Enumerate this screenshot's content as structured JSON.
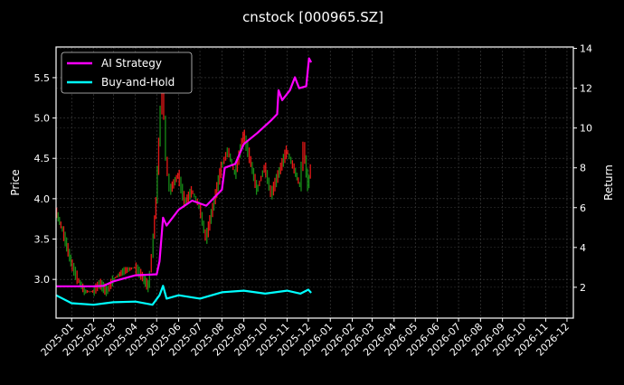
{
  "chart_data": {
    "type": "line",
    "title": "cnstock [000965.SZ]",
    "ylabel_left": "Price",
    "ylabel_right": "Return",
    "xlabel": "",
    "grid": true,
    "legend_placement": "top-left",
    "xlim": [
      "2024-12-10",
      "2026-12-10"
    ],
    "ylim_left": [
      2.52,
      5.88
    ],
    "ylim_right": [
      0.45,
      14.07
    ],
    "x_ticks": [
      "2025-01",
      "2025-02",
      "2025-03",
      "2025-04",
      "2025-05",
      "2025-06",
      "2025-07",
      "2025-08",
      "2025-09",
      "2025-10",
      "2025-11",
      "2025-12",
      "2026-01",
      "2026-02",
      "2026-03",
      "2026-04",
      "2026-05",
      "2026-06",
      "2026-07",
      "2026-08",
      "2026-09",
      "2026-10",
      "2026-11",
      "2026-12"
    ],
    "y_ticks_left": [
      "3.0",
      "3.5",
      "4.0",
      "4.5",
      "5.0",
      "5.5"
    ],
    "y_ticks_right": [
      "2",
      "4",
      "6",
      "8",
      "10",
      "12",
      "14"
    ],
    "colors": {
      "up": "#ff1a1a",
      "down": "#1a9a1a",
      "ai": "#ff00ff",
      "bh": "#00ffff",
      "background": "#000000"
    },
    "price": {
      "dates": [
        "2024-12-10",
        "2024-12-20",
        "2025-01-01",
        "2025-01-10",
        "2025-01-20",
        "2025-02-01",
        "2025-02-10",
        "2025-02-20",
        "2025-03-01",
        "2025-03-15",
        "2025-04-01",
        "2025-04-10",
        "2025-04-20",
        "2025-04-25",
        "2025-05-01",
        "2025-05-05",
        "2025-05-10",
        "2025-05-15",
        "2025-05-20",
        "2025-06-01",
        "2025-06-10",
        "2025-06-20",
        "2025-07-01",
        "2025-07-10",
        "2025-07-20",
        "2025-08-01",
        "2025-08-10",
        "2025-08-20",
        "2025-09-01",
        "2025-09-10",
        "2025-09-20",
        "2025-10-01",
        "2025-10-10",
        "2025-10-20",
        "2025-11-01",
        "2025-11-10",
        "2025-11-20",
        "2025-11-25",
        "2025-12-01",
        "2025-12-05"
      ],
      "close": [
        3.85,
        3.6,
        3.2,
        3.0,
        2.85,
        2.85,
        2.95,
        2.85,
        3.0,
        3.1,
        3.15,
        3.05,
        2.9,
        3.3,
        4.0,
        4.7,
        5.5,
        4.5,
        4.1,
        4.3,
        3.95,
        4.1,
        3.9,
        3.5,
        3.9,
        4.4,
        4.6,
        4.3,
        4.8,
        4.5,
        4.1,
        4.4,
        4.05,
        4.3,
        4.6,
        4.4,
        4.15,
        4.65,
        4.15,
        4.4
      ]
    },
    "series": [
      {
        "name": "AI Strategy",
        "axis": "right",
        "dates": [
          "2024-12-10",
          "2025-02-01",
          "2025-02-15",
          "2025-03-01",
          "2025-04-01",
          "2025-05-01",
          "2025-05-05",
          "2025-05-10",
          "2025-05-15",
          "2025-06-01",
          "2025-06-20",
          "2025-07-10",
          "2025-08-01",
          "2025-08-05",
          "2025-08-20",
          "2025-09-01",
          "2025-09-20",
          "2025-10-10",
          "2025-10-18",
          "2025-10-20",
          "2025-10-25",
          "2025-11-05",
          "2025-11-12",
          "2025-11-18",
          "2025-11-28",
          "2025-12-02",
          "2025-12-05"
        ],
        "values": [
          2.05,
          2.05,
          2.07,
          2.3,
          2.6,
          2.65,
          3.3,
          5.5,
          5.1,
          5.9,
          6.35,
          6.1,
          6.9,
          8.0,
          8.2,
          9.2,
          9.75,
          10.4,
          10.7,
          11.9,
          11.4,
          11.9,
          12.55,
          12.0,
          12.1,
          13.5,
          13.3
        ]
      },
      {
        "name": "Buy-and-Hold",
        "axis": "right",
        "dates": [
          "2024-12-10",
          "2025-01-01",
          "2025-02-01",
          "2025-03-01",
          "2025-04-01",
          "2025-04-25",
          "2025-05-05",
          "2025-05-10",
          "2025-05-15",
          "2025-06-01",
          "2025-07-01",
          "2025-08-01",
          "2025-09-01",
          "2025-10-01",
          "2025-11-01",
          "2025-11-20",
          "2025-12-01",
          "2025-12-05"
        ],
        "values": [
          1.6,
          1.2,
          1.12,
          1.25,
          1.28,
          1.12,
          1.6,
          2.07,
          1.43,
          1.6,
          1.43,
          1.75,
          1.83,
          1.68,
          1.83,
          1.68,
          1.88,
          1.72
        ]
      }
    ]
  }
}
